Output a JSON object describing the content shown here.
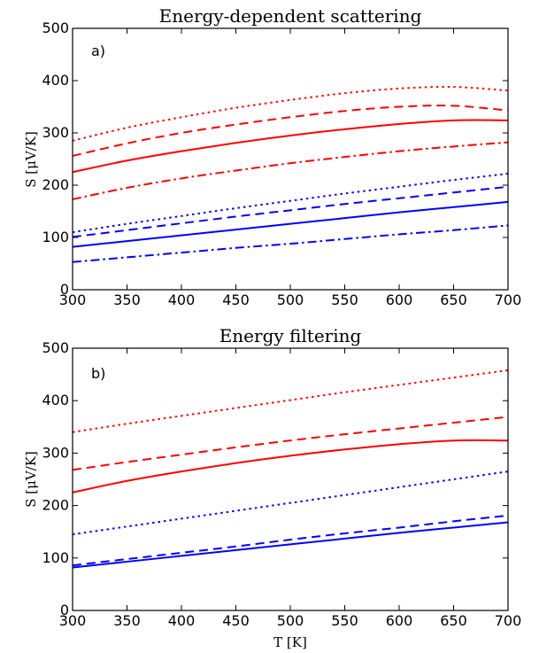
{
  "chart_data": [
    {
      "type": "line",
      "title": "Energy-dependent scattering",
      "panel_label": "a)",
      "xlabel": "",
      "ylabel": "S [μV/K]",
      "xlim": [
        300,
        700
      ],
      "ylim": [
        0,
        500
      ],
      "xticks": [
        300,
        350,
        400,
        450,
        500,
        550,
        600,
        650,
        700
      ],
      "yticks": [
        0,
        100,
        200,
        300,
        400,
        500
      ],
      "grid": false,
      "x": [
        300,
        350,
        400,
        450,
        500,
        550,
        600,
        650,
        700
      ],
      "series": [
        {
          "color": "#ff0000",
          "style": "dotted",
          "values": [
            285,
            310,
            330,
            348,
            363,
            376,
            385,
            388,
            381
          ]
        },
        {
          "color": "#ff0000",
          "style": "dashed",
          "values": [
            256,
            280,
            300,
            316,
            330,
            342,
            350,
            352,
            343
          ]
        },
        {
          "color": "#ff0000",
          "style": "solid",
          "values": [
            225,
            247,
            265,
            281,
            295,
            307,
            317,
            324,
            324
          ]
        },
        {
          "color": "#ff0000",
          "style": "dashdot",
          "values": [
            173,
            195,
            213,
            228,
            242,
            254,
            265,
            274,
            282
          ]
        },
        {
          "color": "#0000ff",
          "style": "dotted",
          "values": [
            110,
            126,
            141,
            156,
            170,
            184,
            197,
            210,
            222
          ]
        },
        {
          "color": "#0000ff",
          "style": "dashed",
          "values": [
            101,
            114,
            127,
            140,
            152,
            164,
            175,
            186,
            197
          ]
        },
        {
          "color": "#0000ff",
          "style": "solid",
          "values": [
            82,
            93,
            104,
            115,
            126,
            137,
            148,
            158,
            168
          ]
        },
        {
          "color": "#0000ff",
          "style": "dashdot",
          "values": [
            53,
            62,
            71,
            80,
            88,
            97,
            106,
            114,
            123
          ]
        }
      ]
    },
    {
      "type": "line",
      "title": "Energy filtering",
      "panel_label": "b)",
      "xlabel": "T [K]",
      "ylabel": "S [μV/K]",
      "xlim": [
        300,
        700
      ],
      "ylim": [
        0,
        500
      ],
      "xticks": [
        300,
        350,
        400,
        450,
        500,
        550,
        600,
        650,
        700
      ],
      "yticks": [
        0,
        100,
        200,
        300,
        400,
        500
      ],
      "grid": false,
      "x": [
        300,
        350,
        400,
        450,
        500,
        550,
        600,
        650,
        700
      ],
      "series": [
        {
          "color": "#ff0000",
          "style": "dotted",
          "values": [
            340,
            356,
            371,
            386,
            401,
            416,
            430,
            444,
            458
          ]
        },
        {
          "color": "#ff0000",
          "style": "dashed",
          "values": [
            268,
            283,
            297,
            311,
            324,
            336,
            347,
            358,
            369
          ]
        },
        {
          "color": "#ff0000",
          "style": "solid",
          "values": [
            225,
            247,
            265,
            281,
            295,
            307,
            317,
            324,
            324
          ]
        },
        {
          "color": "#0000ff",
          "style": "dotted",
          "values": [
            145,
            160,
            175,
            190,
            205,
            220,
            235,
            250,
            265
          ]
        },
        {
          "color": "#0000ff",
          "style": "dashed",
          "values": [
            86,
            98,
            110,
            122,
            135,
            147,
            158,
            170,
            181
          ]
        },
        {
          "color": "#0000ff",
          "style": "solid",
          "values": [
            82,
            93,
            104,
            115,
            126,
            137,
            148,
            158,
            168
          ]
        }
      ]
    }
  ]
}
